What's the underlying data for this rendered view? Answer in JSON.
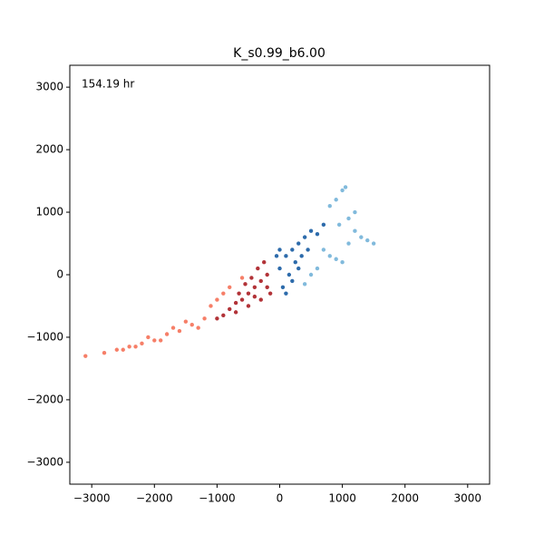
{
  "chart_data": {
    "type": "scatter",
    "title": "K_s0.99_b6.00",
    "annotation": "154.19 hr",
    "xlim": [
      -3350,
      3350
    ],
    "ylim": [
      -3350,
      3350
    ],
    "xticks": [
      {
        "value": -3000,
        "label": "−3000"
      },
      {
        "value": -2000,
        "label": "−2000"
      },
      {
        "value": -1000,
        "label": "−1000"
      },
      0,
      1000,
      2000,
      3000
    ],
    "yticks": [
      {
        "value": -3000,
        "label": "−3000"
      },
      {
        "value": -2000,
        "label": "−2000"
      },
      {
        "value": -1000,
        "label": "−1000"
      },
      0,
      1000,
      2000,
      3000
    ],
    "series": [
      {
        "color": "#f4694e",
        "x": [
          -1200,
          -1400,
          -1600,
          -1800,
          -2000,
          -2200,
          -2400,
          -2600,
          -2800,
          -3100,
          -1300,
          -1500,
          -1700,
          -1900,
          -2100,
          -1100,
          -1000,
          -900,
          -800,
          -600,
          -2300,
          -2500
        ],
        "values": [
          -700,
          -800,
          -900,
          -950,
          -1050,
          -1100,
          -1150,
          -1200,
          -1250,
          -1300,
          -850,
          -750,
          -850,
          -1050,
          -1000,
          -500,
          -400,
          -300,
          -200,
          -50,
          -1150,
          -1200
        ]
      },
      {
        "color": "#a50f15",
        "x": [
          -200,
          -300,
          -400,
          -500,
          -600,
          -700,
          -800,
          -250,
          -350,
          -450,
          -550,
          -650,
          -150,
          -300,
          -500,
          -700,
          -900,
          -1000,
          -400,
          -200
        ],
        "values": [
          0,
          -100,
          -200,
          -300,
          -400,
          -450,
          -550,
          200,
          100,
          -50,
          -150,
          -300,
          -300,
          -400,
          -500,
          -600,
          -650,
          -700,
          -350,
          -200
        ]
      },
      {
        "color": "#6baed6",
        "x": [
          800,
          900,
          1000,
          1050,
          1100,
          1200,
          1300,
          1400,
          1500,
          700,
          800,
          900,
          1000,
          600,
          500,
          400,
          1100,
          1200,
          950
        ],
        "values": [
          1100,
          1200,
          1350,
          1400,
          900,
          700,
          600,
          550,
          500,
          400,
          300,
          250,
          200,
          100,
          0,
          -150,
          500,
          1000,
          800
        ]
      },
      {
        "color": "#08519c",
        "x": [
          0,
          100,
          200,
          300,
          400,
          500,
          150,
          250,
          350,
          50,
          100,
          200,
          300,
          450,
          600,
          700,
          0,
          -50
        ],
        "values": [
          100,
          300,
          400,
          500,
          600,
          700,
          0,
          200,
          300,
          -200,
          -300,
          -100,
          100,
          400,
          650,
          800,
          400,
          300
        ]
      }
    ]
  }
}
